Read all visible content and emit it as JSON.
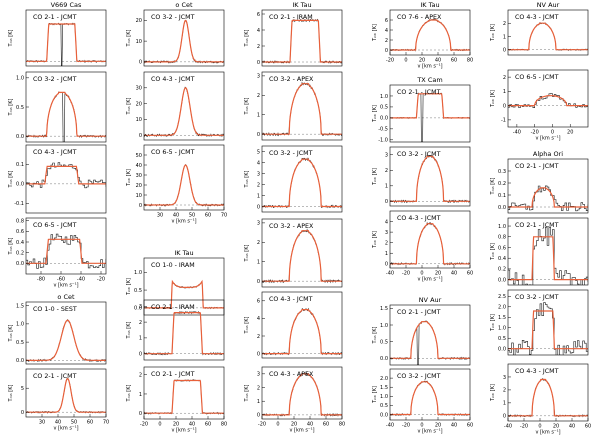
{
  "figure": {
    "line_colors": {
      "data": "#1a1a1a",
      "model": "#e8603a",
      "axes": "#000000",
      "baseline": "#777777"
    },
    "xlabel_text": "v [km s⁻¹]",
    "ylabel_text": "Tₘₕ [K]"
  },
  "chart_data": [
    {
      "type": "line",
      "source": "V669 Cas",
      "title": "CO 2-1 - JCMT",
      "line": "CO 2-1",
      "telescope": "JCMT",
      "col": 0,
      "row": 0,
      "xlim": [
        -100,
        -15
      ],
      "ylim": [
        -0.05,
        0.55
      ],
      "xticks": [],
      "yticks": [],
      "ytick_labels": [],
      "xlabel": "",
      "shape": {
        "center": -62,
        "halfwidth": 16,
        "peak": 0.4,
        "profile": "flat",
        "absorption": -62
      }
    },
    {
      "type": "line",
      "title": "CO 3-2 - JCMT",
      "line": "CO 3-2",
      "telescope": "JCMT",
      "col": 0,
      "row": 1,
      "xlim": [
        -100,
        -15
      ],
      "ylim": [
        -0.1,
        1.1
      ],
      "xticks": [],
      "yticks": [
        0,
        0.5,
        1.0
      ],
      "ytick_labels": [
        "0.0",
        "0.5",
        "1.0"
      ],
      "xlabel": "",
      "shape": {
        "center": -62,
        "halfwidth": 16,
        "peak": 0.75,
        "profile": "parabolic",
        "absorption": -60
      }
    },
    {
      "type": "line",
      "title": "CO 4-3 - JCMT",
      "line": "CO 4-3",
      "telescope": "JCMT",
      "col": 0,
      "row": 2,
      "xlim": [
        -100,
        -15
      ],
      "ylim": [
        -0.15,
        0.2
      ],
      "xticks": [],
      "yticks": [
        -0.1,
        0,
        0.1
      ],
      "ytick_labels": [
        "-0.1",
        "0.0",
        "0.1"
      ],
      "xlabel": "",
      "shape": {
        "center": -62,
        "halfwidth": 18,
        "peak": 0.09,
        "profile": "flat",
        "noisy": true
      }
    },
    {
      "type": "line",
      "title": "CO 6-5 - JCMT",
      "line": "CO 6-5",
      "telescope": "JCMT",
      "col": 0,
      "row": 3,
      "xlim": [
        -95,
        -15
      ],
      "ylim": [
        -0.2,
        0.85
      ],
      "xticks": [
        -80,
        -60,
        -40,
        -20
      ],
      "yticks": [
        0,
        0.2,
        0.4,
        0.6,
        0.8
      ],
      "ytick_labels": [
        "0.0",
        "0.2",
        "0.4",
        "0.6",
        "0.8"
      ],
      "xlabel": "v [km s⁻¹]",
      "shape": {
        "center": -57,
        "halfwidth": 18,
        "peak": 0.45,
        "profile": "flat",
        "noisy": true
      }
    },
    {
      "type": "line",
      "source": "o Cet",
      "title": "CO 1-0 - SEST",
      "line": "CO 1-0",
      "telescope": "SEST",
      "col": 0,
      "row": 4,
      "xlim": [
        20,
        70
      ],
      "ylim": [
        -0.1,
        1.6
      ],
      "xticks": [],
      "yticks": [
        0,
        0.5,
        1.0,
        1.5
      ],
      "ytick_labels": [
        "0.0",
        "0.5",
        "1.0",
        "1.5"
      ],
      "xlabel": "",
      "shape": {
        "center": 46,
        "halfwidth": 7,
        "peak": 1.1,
        "profile": "gauss"
      }
    },
    {
      "type": "line",
      "title": "CO 2-1 - JCMT",
      "line": "CO 2-1",
      "telescope": "JCMT",
      "col": 0,
      "row": 5,
      "xlim": [
        20,
        70
      ],
      "ylim": [
        -1,
        9
      ],
      "xticks": [
        30,
        40,
        50,
        60,
        70
      ],
      "yticks": [
        0,
        5
      ],
      "ytick_labels": [
        "0",
        "5"
      ],
      "xlabel": "v [km s⁻¹]",
      "shape": {
        "center": 46,
        "halfwidth": 4,
        "peak": 7,
        "profile": "gauss"
      }
    },
    {
      "type": "line",
      "source": "o Cet",
      "title": "CO 3-2 - JCMT",
      "line": "CO 3-2",
      "telescope": "JCMT",
      "col": 1,
      "row": 0,
      "xlim": [
        20,
        70
      ],
      "ylim": [
        -2,
        25
      ],
      "xticks": [],
      "yticks": [
        0,
        10,
        20
      ],
      "ytick_labels": [
        "0",
        "10",
        "20"
      ],
      "xlabel": "",
      "shape": {
        "center": 46,
        "halfwidth": 4,
        "peak": 20,
        "profile": "gauss"
      }
    },
    {
      "type": "line",
      "title": "CO 4-3 - JCMT",
      "line": "CO 4-3",
      "telescope": "JCMT",
      "col": 1,
      "row": 1,
      "xlim": [
        20,
        70
      ],
      "ylim": [
        -3,
        40
      ],
      "xticks": [],
      "yticks": [
        0,
        10,
        20,
        30
      ],
      "ytick_labels": [
        "0",
        "10",
        "20",
        "30"
      ],
      "xlabel": "",
      "shape": {
        "center": 46,
        "halfwidth": 5,
        "peak": 30,
        "profile": "gauss"
      }
    },
    {
      "type": "line",
      "title": "CO 6-5 - JCMT",
      "line": "CO 6-5",
      "telescope": "JCMT",
      "col": 1,
      "row": 2,
      "xlim": [
        20,
        70
      ],
      "ylim": [
        -5,
        60
      ],
      "xticks": [
        30,
        40,
        50,
        60,
        70
      ],
      "yticks": [
        0,
        10,
        20,
        30,
        40,
        50
      ],
      "ytick_labels": [
        "0",
        "10",
        "20",
        "30",
        "40",
        "50"
      ],
      "xlabel": "v [km s⁻¹]",
      "shape": {
        "center": 46,
        "halfwidth": 5,
        "peak": 40,
        "profile": "gauss"
      }
    },
    {
      "type": "line",
      "source": "IK Tau",
      "title": "CO 1-0 - IRAM",
      "line": "CO 1-0",
      "telescope": "IRAM",
      "col": 1,
      "row": 3,
      "xlim": [
        -20,
        80
      ],
      "ylim": [
        -0.2,
        1.4
      ],
      "xticks": [],
      "yticks": [
        0,
        0.5,
        1.0
      ],
      "ytick_labels": [
        "0.0",
        "0.5",
        "1.0"
      ],
      "xlabel": "",
      "shape": {
        "center": 34,
        "halfwidth": 20,
        "peak": 0.8,
        "profile": "horns"
      }
    },
    {
      "type": "line",
      "title": "CO 2-1 - IRAM",
      "line": "CO 2-1",
      "telescope": "IRAM",
      "col": 1,
      "row": 4,
      "xlim": [
        -20,
        80
      ],
      "ylim": [
        -0.4,
        3.4
      ],
      "xticks": [],
      "yticks": [
        0,
        1,
        2,
        3
      ],
      "ytick_labels": [
        "0",
        "1",
        "2",
        "3"
      ],
      "xlabel": "",
      "shape": {
        "center": 34,
        "halfwidth": 19,
        "peak": 2.6,
        "profile": "flat"
      }
    },
    {
      "type": "line",
      "title": "CO 2-1 - JCMT",
      "line": "CO 2-1",
      "telescope": "JCMT",
      "col": 1,
      "row": 5,
      "xlim": [
        -20,
        80
      ],
      "ylim": [
        -0.3,
        2.4
      ],
      "xticks": [
        -20,
        0,
        20,
        40,
        60,
        80
      ],
      "yticks": [
        0,
        1,
        2
      ],
      "ytick_labels": [
        "0",
        "1",
        "2"
      ],
      "xlabel": "v [km s⁻¹]",
      "shape": {
        "center": 34,
        "halfwidth": 19,
        "peak": 1.7,
        "profile": "flat"
      }
    },
    {
      "type": "line",
      "source": "IK Tau",
      "title": "CO 2-1 - IRAM",
      "line": "CO 2-1",
      "telescope": "IRAM",
      "col": 2,
      "row": 0,
      "xlim": [
        -20,
        80
      ],
      "ylim": [
        -0.5,
        6.5
      ],
      "xticks": [],
      "yticks": [
        0,
        2,
        4,
        6
      ],
      "ytick_labels": [
        "0",
        "2",
        "4",
        "6"
      ],
      "xlabel": "",
      "shape": {
        "center": 34,
        "halfwidth": 19,
        "peak": 5.2,
        "profile": "flat"
      }
    },
    {
      "type": "line",
      "title": "CO 3-2 - APEX",
      "line": "CO 3-2",
      "telescope": "APEX",
      "col": 2,
      "row": 1,
      "xlim": [
        -20,
        80
      ],
      "ylim": [
        -0.3,
        3.2
      ],
      "xticks": [],
      "yticks": [
        0,
        1,
        2,
        3
      ],
      "ytick_labels": [
        "0",
        "1",
        "2",
        "3"
      ],
      "xlabel": "",
      "shape": {
        "center": 34,
        "halfwidth": 20,
        "peak": 2.6,
        "profile": "parabolic"
      }
    },
    {
      "type": "line",
      "title": "CO 3-2 - JCMT",
      "line": "CO 3-2",
      "telescope": "JCMT",
      "col": 2,
      "row": 2,
      "xlim": [
        -20,
        80
      ],
      "ylim": [
        -0.5,
        5.5
      ],
      "xticks": [],
      "yticks": [
        0,
        1,
        2,
        3,
        4,
        5
      ],
      "ytick_labels": [
        "0",
        "1",
        "2",
        "3",
        "4",
        "5"
      ],
      "xlabel": "",
      "shape": {
        "center": 34,
        "halfwidth": 20,
        "peak": 4.3,
        "profile": "parabolic"
      }
    },
    {
      "type": "line",
      "title": "CO 3-2 - APEX",
      "line": "CO 3-2",
      "telescope": "APEX",
      "col": 2,
      "row": 3,
      "xlim": [
        -20,
        80
      ],
      "ylim": [
        -0.3,
        3.2
      ],
      "xticks": [],
      "yticks": [
        0,
        1,
        2,
        3
      ],
      "ytick_labels": [
        "0",
        "1",
        "2",
        "3"
      ],
      "xlabel": "",
      "shape": {
        "center": 34,
        "halfwidth": 20,
        "peak": 2.6,
        "profile": "parabolic"
      }
    },
    {
      "type": "line",
      "title": "CO 4-3 - JCMT",
      "line": "CO 4-3",
      "telescope": "JCMT",
      "col": 2,
      "row": 4,
      "xlim": [
        -20,
        80
      ],
      "ylim": [
        -0.5,
        7
      ],
      "xticks": [],
      "yticks": [
        0,
        2,
        4,
        6
      ],
      "ytick_labels": [
        "0",
        "2",
        "4",
        "6"
      ],
      "xlabel": "",
      "shape": {
        "center": 34,
        "halfwidth": 20,
        "peak": 5.0,
        "profile": "parabolic"
      }
    },
    {
      "type": "line",
      "title": "CO 4-3 - APEX",
      "line": "CO 4-3",
      "telescope": "APEX",
      "col": 2,
      "row": 5,
      "xlim": [
        -20,
        80
      ],
      "ylim": [
        -0.3,
        3.5
      ],
      "xticks": [
        -20,
        0,
        20,
        40,
        60,
        80
      ],
      "yticks": [
        0,
        1,
        2,
        3
      ],
      "ytick_labels": [
        "0",
        "1",
        "2",
        "3"
      ],
      "xlabel": "v [km s⁻¹]",
      "shape": {
        "center": 34,
        "halfwidth": 20,
        "peak": 3.0,
        "profile": "parabolic"
      }
    },
    {
      "type": "line",
      "source": "IK Tau",
      "title": "CO 7-6 - APEX",
      "line": "CO 7-6",
      "telescope": "APEX",
      "col": 3,
      "row": 0,
      "xlim": [
        -20,
        80
      ],
      "ylim": [
        -1,
        8
      ],
      "xticks": [
        -20,
        0,
        20,
        40,
        60,
        80
      ],
      "yticks": [
        0,
        2,
        4,
        6
      ],
      "ytick_labels": [
        "0",
        "2",
        "4",
        "6"
      ],
      "xlabel": "v [km s⁻¹]",
      "shape": {
        "center": 34,
        "halfwidth": 22,
        "peak": 6,
        "profile": "parabolic"
      }
    },
    {
      "type": "line",
      "source": "TX Cam",
      "title": "CO 2-1 - JCMT",
      "line": "CO 2-1",
      "telescope": "JCMT",
      "col": 3,
      "row": 1,
      "xlim": [
        -40,
        60
      ],
      "ylim": [
        -1.1,
        1.5
      ],
      "xticks": [],
      "yticks": [
        -1,
        -0.5,
        0,
        0.5,
        1.0
      ],
      "ytick_labels": [
        "-1.0",
        "-0.5",
        "0.0",
        "0.5",
        "1.0"
      ],
      "xlabel": "",
      "shape": {
        "center": 10,
        "halfwidth": 17,
        "peak": 1.1,
        "profile": "flat",
        "absorption": 0
      }
    },
    {
      "type": "line",
      "title": "CO 3-2 - JCMT",
      "line": "CO 3-2",
      "telescope": "JCMT",
      "col": 3,
      "row": 2,
      "xlim": [
        -40,
        60
      ],
      "ylim": [
        -0.3,
        3.5
      ],
      "xticks": [],
      "yticks": [
        0,
        1,
        2,
        3
      ],
      "ytick_labels": [
        "0",
        "1",
        "2",
        "3"
      ],
      "xlabel": "",
      "shape": {
        "center": 10,
        "halfwidth": 17,
        "peak": 2.9,
        "profile": "parabolic"
      }
    },
    {
      "type": "line",
      "title": "CO 4-3 - JCMT",
      "line": "CO 4-3",
      "telescope": "JCMT",
      "col": 3,
      "row": 3,
      "xlim": [
        -40,
        60
      ],
      "ylim": [
        -0.4,
        5
      ],
      "xticks": [
        -40,
        -20,
        0,
        20,
        40,
        60
      ],
      "yticks": [
        0,
        1,
        2,
        3,
        4
      ],
      "ytick_labels": [
        "0",
        "1",
        "2",
        "3",
        "4"
      ],
      "xlabel": "v [km s⁻¹]",
      "shape": {
        "center": 10,
        "halfwidth": 17,
        "peak": 3.8,
        "profile": "parabolic"
      }
    },
    {
      "type": "line",
      "source": "NV Aur",
      "title": "CO 2-1 - JCMT",
      "line": "CO 2-1",
      "telescope": "JCMT",
      "col": 3,
      "row": 4,
      "xlim": [
        -40,
        60
      ],
      "ylim": [
        -0.2,
        1.6
      ],
      "xticks": [],
      "yticks": [
        0,
        0.5,
        1.0,
        1.5
      ],
      "ytick_labels": [
        "0.0",
        "0.5",
        "1.0",
        "1.5"
      ],
      "xlabel": "",
      "shape": {
        "center": 3,
        "halfwidth": 17,
        "peak": 1.1,
        "profile": "parabolic",
        "absorption": -5
      }
    },
    {
      "type": "line",
      "title": "CO 3-2 - JCMT",
      "line": "CO 3-2",
      "telescope": "JCMT",
      "col": 3,
      "row": 5,
      "xlim": [
        -40,
        60
      ],
      "ylim": [
        -0.3,
        2.5
      ],
      "xticks": [
        -40,
        -20,
        0,
        20,
        40,
        60
      ],
      "yticks": [
        0,
        0.5,
        1.0,
        1.5,
        2.0
      ],
      "ytick_labels": [
        "0.0",
        "0.5",
        "1.0",
        "1.5",
        "2.0"
      ],
      "xlabel": "v [km s⁻¹]",
      "shape": {
        "center": 3,
        "halfwidth": 17,
        "peak": 1.8,
        "profile": "parabolic"
      }
    },
    {
      "type": "line",
      "source": "NV Aur",
      "title": "CO 4-3 - JCMT",
      "line": "CO 4-3",
      "telescope": "JCMT",
      "col": 4,
      "row": 0,
      "xlim": [
        -40,
        60
      ],
      "ylim": [
        -0.4,
        3
      ],
      "xticks": [],
      "yticks": [
        0,
        1,
        2
      ],
      "ytick_labels": [
        "0",
        "1",
        "2"
      ],
      "xlabel": "",
      "shape": {
        "center": 3,
        "halfwidth": 17,
        "peak": 2.0,
        "profile": "parabolic"
      }
    },
    {
      "type": "line",
      "title": "CO 6-5 - JCMT",
      "line": "CO 6-5",
      "telescope": "JCMT",
      "col": 4,
      "row": 1,
      "xlim": [
        -50,
        40
      ],
      "ylim": [
        -1.5,
        2.5
      ],
      "xticks": [
        -40,
        -20,
        0,
        20
      ],
      "yticks": [
        -1,
        0,
        1,
        2
      ],
      "ytick_labels": [
        "-1",
        "0",
        "1",
        "2"
      ],
      "xlabel": "v [km s⁻¹]",
      "shape": {
        "center": -2,
        "halfwidth": 18,
        "peak": 0.7,
        "profile": "parabolic",
        "noisy": true
      }
    },
    {
      "type": "line",
      "source": "Alpha Ori",
      "title": "CO 2-1 - JCMT",
      "line": "CO 2-1",
      "telescope": "JCMT",
      "col": 4,
      "row": 2,
      "xlim": [
        -40,
        60
      ],
      "ylim": [
        -0.05,
        0.4
      ],
      "xticks": [],
      "yticks": [
        0,
        0.1,
        0.2,
        0.3
      ],
      "ytick_labels": [
        "0.0",
        "0.1",
        "0.2",
        "0.3"
      ],
      "xlabel": "",
      "shape": {
        "center": 4,
        "halfwidth": 14,
        "peak": 0.16,
        "profile": "parabolic",
        "noisy": true
      }
    },
    {
      "type": "line",
      "title": "CO 2-1 - JCMT",
      "line": "CO 2-1",
      "telescope": "JCMT",
      "col": 4,
      "row": 3,
      "xlim": [
        -40,
        60
      ],
      "ylim": [
        -0.1,
        1.15
      ],
      "xticks": [],
      "yticks": [
        0,
        0.2,
        0.4,
        0.6,
        0.8,
        1.0
      ],
      "ytick_labels": [
        "0.0",
        "0.2",
        "0.4",
        "0.6",
        "0.8",
        "1.0"
      ],
      "xlabel": "",
      "shape": {
        "center": 4,
        "halfwidth": 14,
        "peak": 0.8,
        "profile": "flat",
        "noisy": true
      }
    },
    {
      "type": "line",
      "title": "CO 3-2 - JCMT",
      "line": "CO 3-2",
      "telescope": "JCMT",
      "col": 4,
      "row": 4,
      "xlim": [
        -40,
        60
      ],
      "ylim": [
        -0.3,
        2.8
      ],
      "xticks": [],
      "yticks": [
        0,
        0.5,
        1.0,
        1.5,
        2.0,
        2.5
      ],
      "ytick_labels": [
        "0.0",
        "0.5",
        "1.0",
        "1.5",
        "2.0",
        "2.5"
      ],
      "xlabel": "",
      "shape": {
        "center": 4,
        "halfwidth": 14,
        "peak": 1.8,
        "profile": "flat",
        "noisy": true
      }
    },
    {
      "type": "line",
      "title": "CO 4-3 - JCMT",
      "line": "CO 4-3",
      "telescope": "JCMT",
      "col": 4,
      "row": 5,
      "xlim": [
        -40,
        60
      ],
      "ylim": [
        -0.4,
        4
      ],
      "xticks": [
        -40,
        -20,
        0,
        20,
        40,
        60
      ],
      "yticks": [
        0,
        1,
        2,
        3
      ],
      "ytick_labels": [
        "0",
        "1",
        "2",
        "3"
      ],
      "xlabel": "v [km s⁻¹]",
      "shape": {
        "center": 4,
        "halfwidth": 14,
        "peak": 2.8,
        "profile": "parabolic"
      }
    }
  ]
}
